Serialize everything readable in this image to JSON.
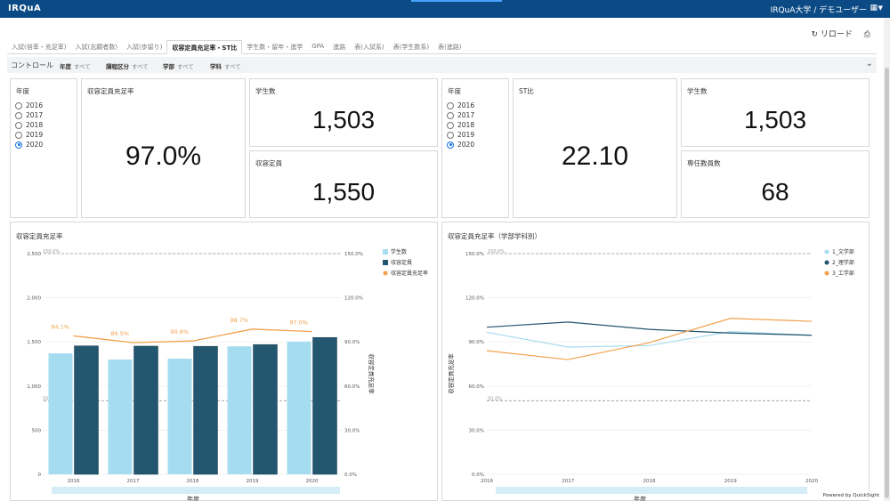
{
  "header": {
    "brand": "IRQuA",
    "user": "IRQuA大学 / デモユーザー",
    "menu_icon": "building-icon"
  },
  "actions": {
    "reload_label": "リロード",
    "print_icon": "printer-icon"
  },
  "tabs": [
    {
      "label": "入試(倍率・充足率)",
      "active": false
    },
    {
      "label": "入試(志願者数)",
      "active": false
    },
    {
      "label": "入試(歩留り)",
      "active": false
    },
    {
      "label": "収容定員充足率・ST比",
      "active": true
    },
    {
      "label": "学生数・留年・進学",
      "active": false
    },
    {
      "label": "GPA",
      "active": false
    },
    {
      "label": "進路",
      "active": false
    },
    {
      "label": "表(入試系)",
      "active": false
    },
    {
      "label": "表(学生数系)",
      "active": false
    },
    {
      "label": "表(進路)",
      "active": false
    }
  ],
  "controls": {
    "title": "コントロール",
    "items": [
      {
        "label": "年度",
        "value": "すべて"
      },
      {
        "label": "課程区分",
        "value": "すべて"
      },
      {
        "label": "学部",
        "value": "すべて"
      },
      {
        "label": "学科",
        "value": "すべて"
      }
    ]
  },
  "left_year_filter": {
    "title": "年度",
    "options": [
      "2016",
      "2017",
      "2018",
      "2019",
      "2020"
    ],
    "selected": "2020"
  },
  "right_year_filter": {
    "title": "年度",
    "options": [
      "2016",
      "2017",
      "2018",
      "2019",
      "2020"
    ],
    "selected": "2020"
  },
  "kpis": {
    "fill_rate": {
      "title": "収容定員充足率",
      "value": "97.0%"
    },
    "students_left": {
      "title": "学生数",
      "value": "1,503"
    },
    "capacity": {
      "title": "収容定員",
      "value": "1,550"
    },
    "st_ratio": {
      "title": "ST比",
      "value": "22.10"
    },
    "students_right": {
      "title": "学生数",
      "value": "1,503"
    },
    "faculty": {
      "title": "専任教員数",
      "value": "68"
    }
  },
  "chart_left_title": "収容定員充足率",
  "chart_right_title": "収容定員充足率（学部学科別）",
  "powered_by": "Powered by QuickSight",
  "colors": {
    "students": "#a6dcef",
    "capacity": "#23566f",
    "rate": "#f2a14d",
    "dept_bun": "#a6dcef",
    "dept_ri": "#23566f",
    "dept_ko": "#f2a14d"
  },
  "chart_data": [
    {
      "type": "bar",
      "categories": [
        "2016",
        "2017",
        "2018",
        "2019",
        "2020"
      ],
      "series": [
        {
          "name": "学生数",
          "kind": "bar",
          "axis": "left",
          "values": [
            1370,
            1300,
            1310,
            1450,
            1503
          ]
        },
        {
          "name": "収容定員",
          "kind": "bar",
          "axis": "left",
          "values": [
            1455,
            1452,
            1450,
            1470,
            1550
          ]
        },
        {
          "name": "収容定員充足率",
          "kind": "line",
          "axis": "right",
          "values": [
            94.1,
            89.5,
            90.6,
            98.7,
            97.0
          ],
          "labels": [
            "94.1%",
            "89.5%",
            "90.6%",
            "98.7%",
            "97.0%"
          ]
        }
      ],
      "xlabel": "年度",
      "ylabel_right": "収容定員充足率",
      "ylim_left": [
        0,
        2500
      ],
      "ylim_right": [
        0,
        150
      ],
      "yticks_left": [
        "0",
        "500",
        "1,000",
        "1,500",
        "2,000",
        "2,500"
      ],
      "yticks_right": [
        "0.0%",
        "30.0%",
        "60.0%",
        "90.0%",
        "120.0%",
        "150.0%"
      ],
      "reference_lines": [
        {
          "label": "150.0%",
          "value": 150
        },
        {
          "label": "50.0%",
          "value": 50
        }
      ],
      "legend_position": "right"
    },
    {
      "type": "line",
      "categories": [
        "2016",
        "2017",
        "2018",
        "2019",
        "2020"
      ],
      "series": [
        {
          "name": "1_文学部",
          "values": [
            96.5,
            86.5,
            87.5,
            97.0,
            94.5
          ]
        },
        {
          "name": "2_理学部",
          "values": [
            100.0,
            103.5,
            98.5,
            96.0,
            94.5
          ]
        },
        {
          "name": "3_工学部",
          "values": [
            84.0,
            78.0,
            89.5,
            106.0,
            104.0
          ]
        }
      ],
      "xlabel": "年度",
      "ylabel": "収容定員充足率",
      "ylim": [
        0,
        150
      ],
      "yticks": [
        "0.0%",
        "30.0%",
        "60.0%",
        "90.0%",
        "120.0%",
        "150.0%"
      ],
      "reference_lines": [
        {
          "label": "150.0%",
          "value": 150
        },
        {
          "label": "50.0%",
          "value": 50
        }
      ],
      "legend_position": "right"
    }
  ]
}
